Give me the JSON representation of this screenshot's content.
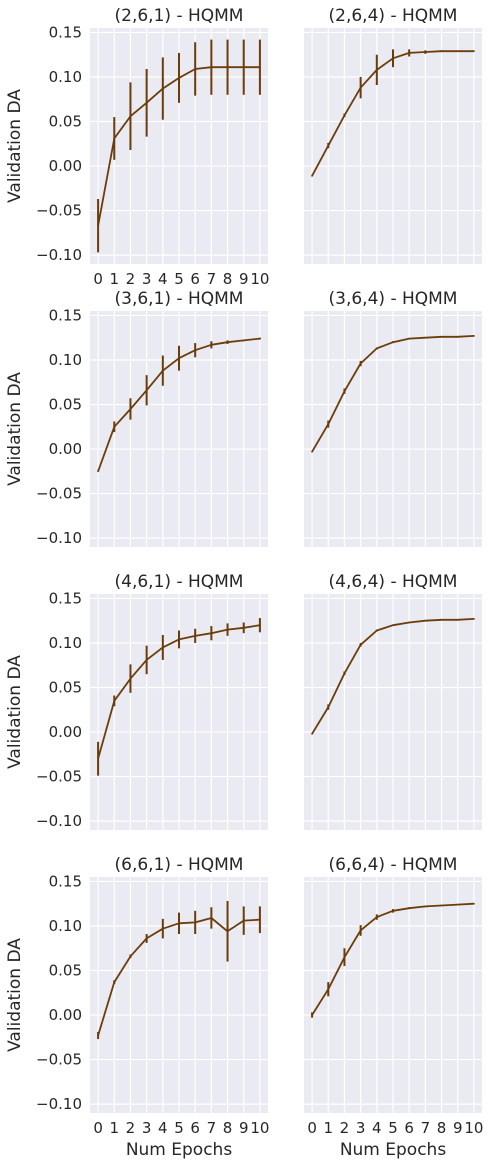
{
  "colors": {
    "plot_bg": "#eaeaf2",
    "grid": "#ffffff",
    "line": "#6b3d0a",
    "text": "#262626"
  },
  "chart_data": [
    {
      "type": "line",
      "title": "(2,6,1) - HQMM",
      "xlabel": "",
      "ylabel": "Validation DA",
      "x": [
        0,
        1,
        2,
        3,
        4,
        5,
        6,
        7,
        8,
        9,
        10
      ],
      "y": [
        -0.067,
        0.031,
        0.056,
        0.071,
        0.087,
        0.099,
        0.109,
        0.111,
        0.111,
        0.111,
        0.111
      ],
      "err": [
        0.03,
        0.024,
        0.038,
        0.038,
        0.035,
        0.028,
        0.03,
        0.031,
        0.031,
        0.031,
        0.031
      ],
      "xlim": [
        -0.5,
        10.5
      ],
      "ylim": [
        -0.11,
        0.155
      ],
      "xticks": [
        "0",
        "1",
        "2",
        "3",
        "4",
        "5",
        "6",
        "7",
        "8",
        "9",
        "10"
      ],
      "yticks": [
        "0.15",
        "0.10",
        "0.05",
        "0.00",
        "−0.05",
        "−0.10"
      ],
      "grid": true
    },
    {
      "type": "line",
      "title": "(2,6,4) - HQMM",
      "xlabel": "",
      "ylabel": "",
      "x": [
        0,
        1,
        2,
        3,
        4,
        5,
        6,
        7,
        8,
        9,
        10
      ],
      "y": [
        -0.011,
        0.023,
        0.057,
        0.088,
        0.108,
        0.121,
        0.127,
        0.128,
        0.129,
        0.129,
        0.129
      ],
      "err": [
        0.0,
        0.003,
        0.002,
        0.012,
        0.017,
        0.01,
        0.004,
        0.002,
        0.001,
        0.0,
        0.0
      ],
      "xlim": [
        -0.5,
        10.5
      ],
      "ylim": [
        -0.11,
        0.155
      ],
      "xticks": [],
      "yticks": [],
      "grid": true
    },
    {
      "type": "line",
      "title": "(3,6,1) - HQMM",
      "xlabel": "",
      "ylabel": "Validation DA",
      "x": [
        0,
        1,
        2,
        3,
        4,
        5,
        6,
        7,
        8,
        9,
        10
      ],
      "y": [
        -0.025,
        0.025,
        0.045,
        0.066,
        0.088,
        0.102,
        0.111,
        0.117,
        0.12,
        0.122,
        0.124
      ],
      "err": [
        0.0,
        0.006,
        0.012,
        0.017,
        0.017,
        0.014,
        0.008,
        0.004,
        0.002,
        0.001,
        0.001
      ],
      "xlim": [
        -0.5,
        10.5
      ],
      "ylim": [
        -0.11,
        0.155
      ],
      "xticks": [],
      "yticks": [
        "0.15",
        "0.10",
        "0.05",
        "0.00",
        "−0.05",
        "−0.10"
      ],
      "grid": true
    },
    {
      "type": "line",
      "title": "(3,6,4) - HQMM",
      "xlabel": "",
      "ylabel": "",
      "x": [
        0,
        1,
        2,
        3,
        4,
        5,
        6,
        7,
        8,
        9,
        10
      ],
      "y": [
        -0.003,
        0.028,
        0.065,
        0.096,
        0.113,
        0.12,
        0.124,
        0.125,
        0.126,
        0.126,
        0.127
      ],
      "err": [
        0.0,
        0.004,
        0.003,
        0.003,
        0.001,
        0.001,
        0.0,
        0.0,
        0.0,
        0.0,
        0.0
      ],
      "xlim": [
        -0.5,
        10.5
      ],
      "ylim": [
        -0.11,
        0.155
      ],
      "xticks": [],
      "yticks": [],
      "grid": true
    },
    {
      "type": "line",
      "title": "(4,6,1) - HQMM",
      "xlabel": "",
      "ylabel": "Validation DA",
      "x": [
        0,
        1,
        2,
        3,
        4,
        5,
        6,
        7,
        8,
        9,
        10
      ],
      "y": [
        -0.03,
        0.035,
        0.06,
        0.081,
        0.095,
        0.104,
        0.108,
        0.111,
        0.115,
        0.117,
        0.12
      ],
      "err": [
        0.019,
        0.006,
        0.016,
        0.016,
        0.014,
        0.01,
        0.008,
        0.008,
        0.007,
        0.006,
        0.008
      ],
      "xlim": [
        -0.5,
        10.5
      ],
      "ylim": [
        -0.11,
        0.155
      ],
      "xticks": [],
      "yticks": [
        "0.15",
        "0.10",
        "0.05",
        "0.00",
        "−0.05",
        "−0.10"
      ],
      "grid": true
    },
    {
      "type": "line",
      "title": "(4,6,4) - HQMM",
      "xlabel": "",
      "ylabel": "",
      "x": [
        0,
        1,
        2,
        3,
        4,
        5,
        6,
        7,
        8,
        9,
        10
      ],
      "y": [
        -0.002,
        0.028,
        0.066,
        0.098,
        0.114,
        0.12,
        0.123,
        0.125,
        0.126,
        0.126,
        0.127
      ],
      "err": [
        0.0,
        0.003,
        0.002,
        0.002,
        0.001,
        0.0,
        0.0,
        0.0,
        0.0,
        0.0,
        0.0
      ],
      "xlim": [
        -0.5,
        10.5
      ],
      "ylim": [
        -0.11,
        0.155
      ],
      "xticks": [],
      "yticks": [],
      "grid": true
    },
    {
      "type": "line",
      "title": "(6,6,1) - HQMM",
      "xlabel": "Num Epochs",
      "ylabel": "Validation DA",
      "x": [
        0,
        1,
        2,
        3,
        4,
        5,
        6,
        7,
        8,
        9,
        10
      ],
      "y": [
        -0.023,
        0.037,
        0.066,
        0.086,
        0.097,
        0.103,
        0.104,
        0.109,
        0.094,
        0.106,
        0.107
      ],
      "err": [
        0.004,
        0.002,
        0.002,
        0.005,
        0.011,
        0.012,
        0.013,
        0.012,
        0.034,
        0.016,
        0.015
      ],
      "xlim": [
        -0.5,
        10.5
      ],
      "ylim": [
        -0.11,
        0.155
      ],
      "xticks": [
        "0",
        "1",
        "2",
        "3",
        "4",
        "5",
        "6",
        "7",
        "8",
        "9",
        "10"
      ],
      "yticks": [
        "0.15",
        "0.10",
        "0.05",
        "0.00",
        "−0.05",
        "−0.10"
      ],
      "grid": true
    },
    {
      "type": "line",
      "title": "(6,6,4) - HQMM",
      "xlabel": "Num Epochs",
      "ylabel": "",
      "x": [
        0,
        1,
        2,
        3,
        4,
        5,
        6,
        7,
        8,
        9,
        10
      ],
      "y": [
        0.0,
        0.029,
        0.065,
        0.095,
        0.11,
        0.117,
        0.12,
        0.122,
        0.123,
        0.124,
        0.125
      ],
      "err": [
        0.003,
        0.008,
        0.01,
        0.006,
        0.003,
        0.002,
        0.001,
        0.001,
        0.0,
        0.0,
        0.0
      ],
      "xlim": [
        -0.5,
        10.5
      ],
      "ylim": [
        -0.11,
        0.155
      ],
      "xticks": [
        "0",
        "1",
        "2",
        "3",
        "4",
        "5",
        "6",
        "7",
        "8",
        "9",
        "10"
      ],
      "yticks": [],
      "grid": true
    }
  ]
}
